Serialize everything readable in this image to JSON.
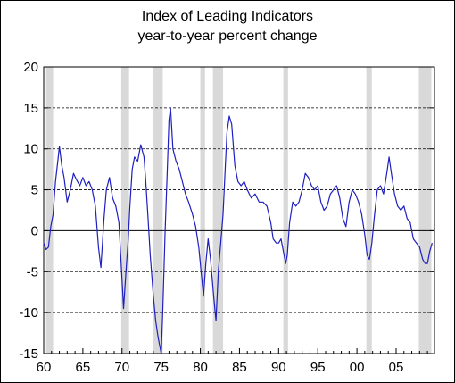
{
  "chart_data": {
    "type": "line",
    "title": "Index of Leading Indicators",
    "subtitle": "year-to-year percent change",
    "xlabel": "",
    "ylabel": "",
    "xlim": [
      1960,
      2009.9
    ],
    "ylim": [
      -15,
      20
    ],
    "y_ticks": [
      20,
      15,
      10,
      5,
      0,
      -5,
      -10,
      -15
    ],
    "x_ticks": [
      {
        "label": "60",
        "value": 1960
      },
      {
        "label": "65",
        "value": 1965
      },
      {
        "label": "70",
        "value": 1970
      },
      {
        "label": "75",
        "value": 1975
      },
      {
        "label": "80",
        "value": 1980
      },
      {
        "label": "85",
        "value": 1985
      },
      {
        "label": "90",
        "value": 1990
      },
      {
        "label": "95",
        "value": 1995
      },
      {
        "label": "00",
        "value": 2000
      },
      {
        "label": "05",
        "value": 2005
      }
    ],
    "grid": "horizontal dashed",
    "recession_bands": [
      [
        1960.3,
        1961.2
      ],
      [
        1969.9,
        1970.9
      ],
      [
        1973.9,
        1975.2
      ],
      [
        1980.0,
        1980.6
      ],
      [
        1981.6,
        1982.9
      ],
      [
        1990.6,
        1991.2
      ],
      [
        2001.2,
        2001.9
      ],
      [
        2007.9,
        2009.5
      ]
    ],
    "colors": {
      "line": "#1f1fbf",
      "band": "#d9d9d9",
      "grid": "#000000"
    },
    "series": [
      {
        "x": [
          1960.0,
          1960.3,
          1960.6,
          1960.9,
          1961.2,
          1961.5,
          1961.8,
          1962.0,
          1962.3,
          1962.6,
          1963.0,
          1963.4,
          1963.8,
          1964.2,
          1964.6,
          1965.0,
          1965.4,
          1965.8,
          1966.2,
          1966.6,
          1967.0,
          1967.3,
          1967.7,
          1968.0,
          1968.4,
          1968.8,
          1969.2,
          1969.6,
          1970.0,
          1970.2,
          1970.5,
          1970.8,
          1971.0,
          1971.3,
          1971.6,
          1972.0,
          1972.4,
          1972.8,
          1973.0,
          1973.3,
          1973.6,
          1974.0,
          1974.3,
          1974.6,
          1975.0,
          1975.2,
          1975.5,
          1975.8,
          1976.0,
          1976.2,
          1976.5,
          1976.9,
          1977.3,
          1977.7,
          1978.1,
          1978.5,
          1979.0,
          1979.4,
          1979.8,
          1980.2,
          1980.4,
          1980.7,
          1981.0,
          1981.3,
          1981.7,
          1982.0,
          1982.3,
          1982.6,
          1982.9,
          1983.2,
          1983.4,
          1983.7,
          1984.0,
          1984.4,
          1984.8,
          1985.2,
          1985.6,
          1986.0,
          1986.5,
          1987.0,
          1987.5,
          1988.0,
          1988.5,
          1989.0,
          1989.3,
          1989.7,
          1990.0,
          1990.3,
          1990.6,
          1990.9,
          1991.1,
          1991.4,
          1991.8,
          1992.2,
          1992.6,
          1993.0,
          1993.4,
          1993.8,
          1994.2,
          1994.6,
          1995.0,
          1995.4,
          1995.8,
          1996.2,
          1996.6,
          1997.0,
          1997.4,
          1997.8,
          1998.2,
          1998.6,
          1999.0,
          1999.4,
          1999.8,
          2000.2,
          2000.6,
          2001.0,
          2001.3,
          2001.6,
          2001.9,
          2002.2,
          2002.6,
          2003.0,
          2003.4,
          2003.8,
          2004.1,
          2004.4,
          2004.8,
          2005.2,
          2005.6,
          2006.0,
          2006.4,
          2006.8,
          2007.2,
          2007.6,
          2008.0,
          2008.4,
          2008.7,
          2009.0,
          2009.3,
          2009.6
        ],
        "y": [
          -1.5,
          -2.3,
          -2.0,
          0.5,
          2.0,
          6.0,
          8.5,
          10.3,
          8.0,
          6.5,
          3.5,
          5.0,
          7.0,
          6.2,
          5.5,
          6.5,
          5.5,
          6.0,
          5.0,
          3.0,
          -2.0,
          -4.5,
          1.5,
          5.0,
          6.5,
          4.0,
          3.0,
          1.0,
          -6.0,
          -9.5,
          -5.0,
          -1.0,
          3.0,
          7.5,
          9.0,
          8.5,
          10.5,
          9.0,
          6.5,
          2.0,
          -3.0,
          -8.0,
          -11.0,
          -13.0,
          -15.0,
          -10.0,
          0.0,
          8.0,
          13.5,
          15.0,
          10.0,
          8.5,
          7.5,
          6.0,
          4.5,
          3.5,
          2.0,
          0.5,
          -2.0,
          -6.0,
          -8.0,
          -4.0,
          -1.0,
          -3.5,
          -8.0,
          -11.0,
          -5.0,
          -1.5,
          2.0,
          8.0,
          12.0,
          14.0,
          13.0,
          8.0,
          6.0,
          5.5,
          6.0,
          5.0,
          4.0,
          4.5,
          3.5,
          3.5,
          3.0,
          1.0,
          -1.0,
          -1.5,
          -1.5,
          -1.0,
          -2.5,
          -4.0,
          -3.0,
          1.0,
          3.5,
          3.0,
          3.5,
          5.0,
          7.0,
          6.5,
          5.5,
          5.0,
          5.5,
          3.5,
          2.5,
          3.0,
          4.5,
          5.0,
          5.5,
          4.0,
          1.5,
          0.5,
          3.5,
          5.0,
          4.5,
          3.5,
          2.0,
          -0.5,
          -3.0,
          -3.5,
          -1.5,
          1.5,
          5.0,
          5.5,
          4.5,
          7.0,
          9.0,
          7.0,
          4.5,
          3.0,
          2.5,
          3.0,
          1.5,
          1.0,
          -1.0,
          -1.5,
          -2.0,
          -3.5,
          -4.0,
          -4.0,
          -2.5,
          -1.5
        ]
      }
    ]
  }
}
